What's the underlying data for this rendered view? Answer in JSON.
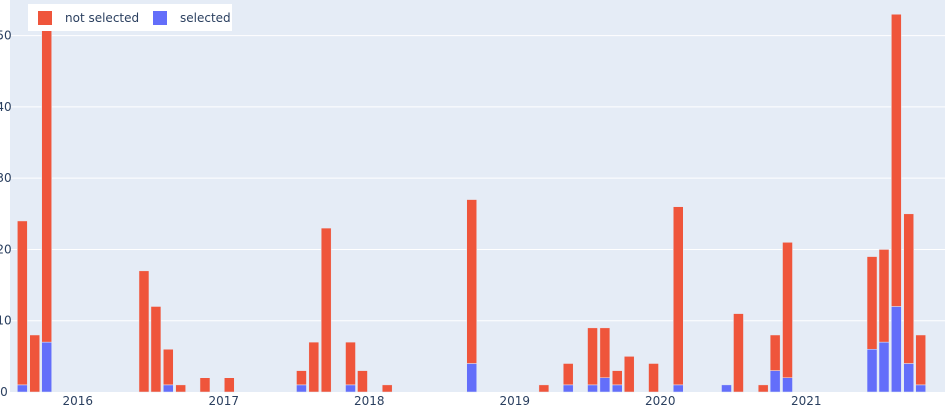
{
  "chart_data": {
    "type": "bar",
    "barmode": "stack",
    "x_axis_type": "date",
    "x_tick_labels": [
      "2016",
      "2017",
      "2018",
      "2019",
      "2020",
      "2021"
    ],
    "x_tick_dates": [
      "2016-01-01",
      "2017-01-01",
      "2018-01-01",
      "2019-01-01",
      "2020-01-01",
      "2021-01-01"
    ],
    "xlim": [
      "2015-07-15",
      "2021-12-15"
    ],
    "ylim": [
      0,
      55
    ],
    "y_ticks": [
      0,
      10,
      20,
      30,
      40,
      50
    ],
    "grid": true,
    "legend_placement": "top-left",
    "colors": {
      "not_selected": "#EF553B",
      "selected": "#636EFA",
      "plot_bg": "#E5ECF6",
      "grid": "#ffffff",
      "text": "#2a3f5f"
    },
    "x": [
      "2015-08",
      "2015-09",
      "2015-10",
      "2016-06",
      "2016-07",
      "2016-08",
      "2016-09",
      "2016-11",
      "2017-01",
      "2017-07",
      "2017-08",
      "2017-09",
      "2017-11",
      "2017-12",
      "2018-02",
      "2018-09",
      "2019-03",
      "2019-05",
      "2019-07",
      "2019-08",
      "2019-09",
      "2019-10",
      "2019-12",
      "2020-02",
      "2020-06",
      "2020-07",
      "2020-09",
      "2020-10",
      "2020-11",
      "2021-06",
      "2021-07",
      "2021-08",
      "2021-09",
      "2021-10"
    ],
    "series": [
      {
        "name": "selected",
        "values": [
          1,
          0,
          7,
          0,
          0,
          1,
          0,
          0,
          0,
          1,
          0,
          0,
          1,
          0,
          0,
          4,
          0,
          1,
          1,
          2,
          1,
          0,
          0,
          1,
          1,
          0,
          0,
          3,
          2,
          6,
          7,
          12,
          4,
          1
        ]
      },
      {
        "name": "not selected",
        "values": [
          23,
          8,
          45,
          17,
          12,
          5,
          1,
          2,
          2,
          2,
          7,
          23,
          6,
          3,
          1,
          23,
          1,
          3,
          8,
          7,
          2,
          5,
          4,
          25,
          0,
          11,
          1,
          5,
          19,
          13,
          13,
          41,
          21,
          7
        ]
      }
    ]
  }
}
